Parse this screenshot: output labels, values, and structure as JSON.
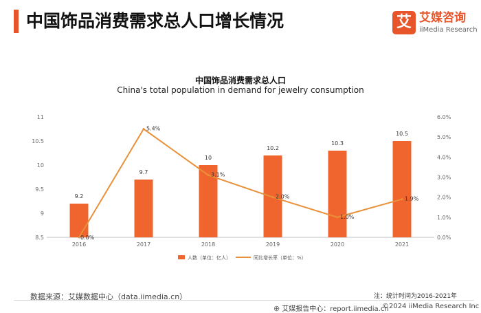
{
  "header": {
    "title": "中国饰品消费需求总人口增长情况",
    "accent_color": "#e8552a"
  },
  "logo": {
    "mark": "艾",
    "name_cn": "艾媒咨询",
    "name_en": "iiMedia Research"
  },
  "chart_data": {
    "type": "bar",
    "title": "中国饰品消费需求总人口",
    "subtitle": "China's total population in demand for jewelry consumption",
    "categories": [
      "2016",
      "2017",
      "2018",
      "2019",
      "2020",
      "2021"
    ],
    "series": [
      {
        "name": "人数（单位：亿人）",
        "type": "bar",
        "axis": "left",
        "values": [
          9.2,
          9.7,
          10,
          10.2,
          10.3,
          10.5
        ],
        "labels": [
          "9.2",
          "9.7",
          "10",
          "10.2",
          "10.3",
          "10.5"
        ],
        "color": "#f0652e"
      },
      {
        "name": "同比增长率（单位：%）",
        "type": "line",
        "axis": "right",
        "values": [
          0.0,
          5.4,
          3.1,
          2.0,
          1.0,
          1.9
        ],
        "labels": [
          "0.0%",
          "5.4%",
          "3.1%",
          "2.0%",
          "1.0%",
          "1.9%"
        ],
        "color": "#e8913a"
      }
    ],
    "y_left": {
      "min": 8.5,
      "max": 11,
      "ticks": [
        8.5,
        9,
        9.5,
        10,
        10.5,
        11
      ],
      "tick_labels": [
        "8.5",
        "9",
        "9.5",
        "10",
        "10.5",
        "11"
      ]
    },
    "y_right": {
      "min": 0,
      "max": 6,
      "ticks": [
        0,
        1,
        2,
        3,
        4,
        5,
        6
      ],
      "tick_labels": [
        "0.0%",
        "1.0%",
        "2.0%",
        "3.0%",
        "4.0%",
        "5.0%",
        "6.0%"
      ]
    },
    "legend_position": "bottom-center",
    "grid": false
  },
  "footer": {
    "source": "数据来源：艾媒数据中心（data.iimedia.cn）",
    "note": "注：统计时间为2016-2021年",
    "report_center": "艾媒报告中心：report.iimedia.cn",
    "copyright": "©2024  iiMedia Research  Inc"
  }
}
